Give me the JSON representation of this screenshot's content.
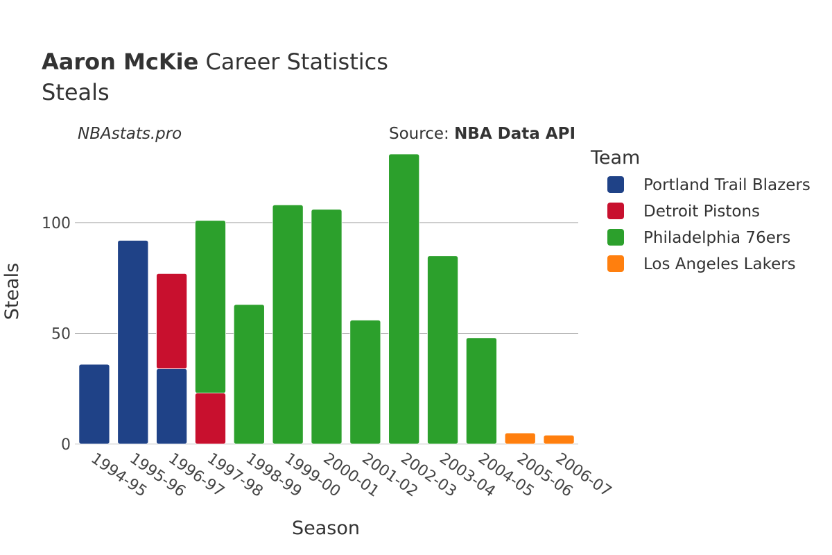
{
  "header": {
    "player": "Aaron McKie",
    "title_rest": "Career Statistics",
    "subtitle": "Steals",
    "site": "NBAstats.pro",
    "source_prefix": "Source: ",
    "source_name": "NBA Data API"
  },
  "chart_data": {
    "type": "bar",
    "stacked": true,
    "xlabel": "Season",
    "ylabel": "Steals",
    "ylim": [
      0,
      131
    ],
    "yticks": [
      0,
      50,
      100
    ],
    "grid": true,
    "legend_title": "Team",
    "legend_position": "right",
    "categories": [
      "1994-95",
      "1995-96",
      "1996-97",
      "1997-98",
      "1998-99",
      "1999-00",
      "2000-01",
      "2001-02",
      "2002-03",
      "2003-04",
      "2004-05",
      "2005-06",
      "2006-07"
    ],
    "series": [
      {
        "name": "Portland Trail Blazers",
        "color": "#1f4287",
        "values": [
          36,
          92,
          34,
          0,
          0,
          0,
          0,
          0,
          0,
          0,
          0,
          0,
          0
        ]
      },
      {
        "name": "Detroit Pistons",
        "color": "#c8102e",
        "values": [
          0,
          0,
          43,
          23,
          0,
          0,
          0,
          0,
          0,
          0,
          0,
          0,
          0
        ]
      },
      {
        "name": "Philadelphia 76ers",
        "color": "#2ca02c",
        "values": [
          0,
          0,
          0,
          78,
          63,
          108,
          106,
          56,
          131,
          85,
          48,
          0,
          0
        ]
      },
      {
        "name": "Los Angeles Lakers",
        "color": "#ff7f0e",
        "values": [
          0,
          0,
          0,
          0,
          0,
          0,
          0,
          0,
          0,
          0,
          0,
          5,
          4
        ]
      }
    ]
  }
}
